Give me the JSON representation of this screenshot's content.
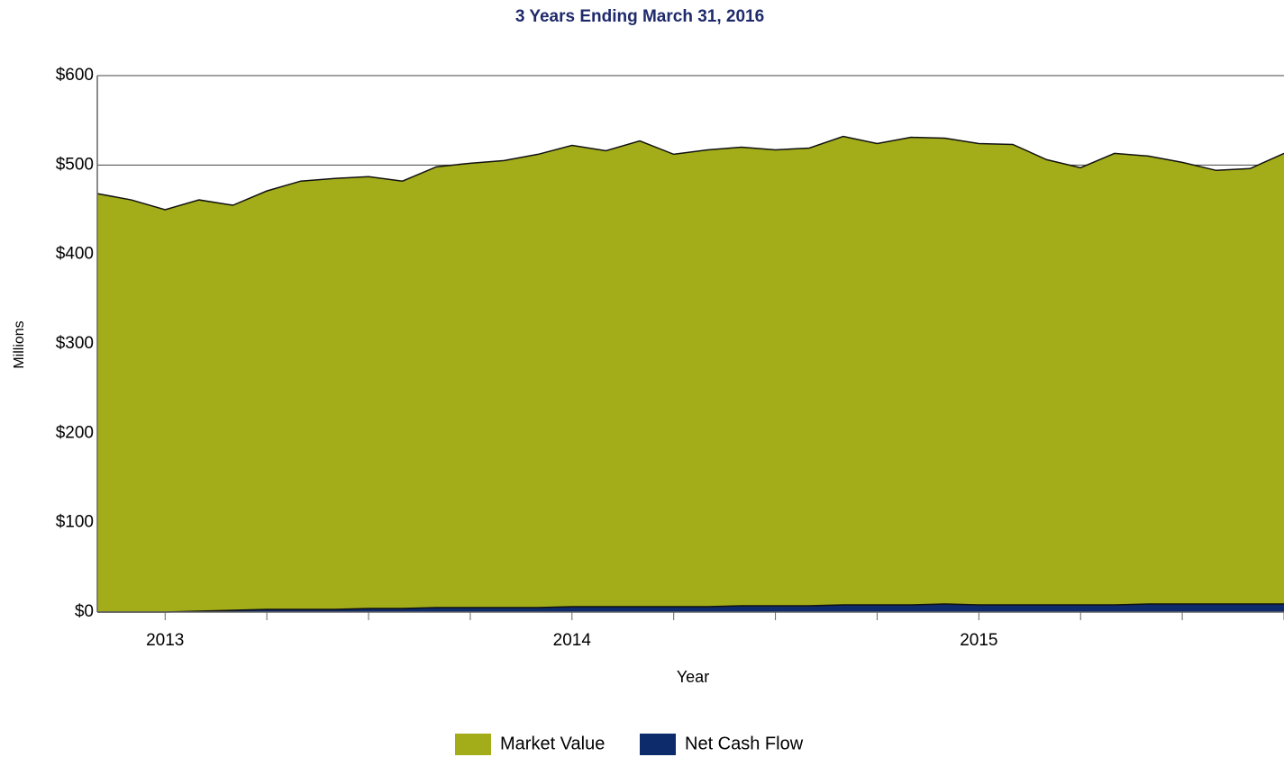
{
  "chart_data": {
    "type": "area",
    "title": "3 Years Ending March 31, 2016",
    "y_label": "Millions",
    "x_label": "Year",
    "categories": [
      null,
      null,
      "2013",
      null,
      null,
      null,
      null,
      null,
      null,
      null,
      null,
      null,
      null,
      null,
      "2014",
      null,
      null,
      null,
      null,
      null,
      null,
      null,
      null,
      null,
      null,
      null,
      "2015",
      null,
      null,
      null,
      null,
      null,
      null,
      null,
      null,
      null
    ],
    "series": [
      {
        "name": "Market Value",
        "color": "#a3ad1a",
        "values": [
          468,
          461,
          450,
          461,
          455,
          471,
          482,
          485,
          487,
          482,
          498,
          502,
          505,
          512,
          522,
          516,
          527,
          512,
          517,
          520,
          517,
          519,
          532,
          524,
          531,
          530,
          524,
          523,
          506,
          497,
          513,
          510,
          503,
          494,
          496,
          513
        ]
      },
      {
        "name": "Net Cash Flow",
        "color": "#0d2a6b",
        "values": [
          0,
          0,
          0,
          1,
          2,
          3,
          3,
          3,
          4,
          4,
          5,
          5,
          5,
          5,
          6,
          6,
          6,
          6,
          6,
          7,
          7,
          7,
          8,
          8,
          8,
          9,
          8,
          8,
          8,
          8,
          8,
          9,
          9,
          9,
          9,
          9
        ]
      }
    ],
    "ylim": [
      0,
      600
    ],
    "yticks": [
      {
        "value": 0,
        "label": "$0"
      },
      {
        "value": 100,
        "label": "$100"
      },
      {
        "value": 200,
        "label": "$200"
      },
      {
        "value": 300,
        "label": "$300"
      },
      {
        "value": 400,
        "label": "$400"
      },
      {
        "value": 500,
        "label": "$500"
      },
      {
        "value": 600,
        "label": "$600"
      }
    ],
    "grid": true,
    "legend": "bottom"
  }
}
